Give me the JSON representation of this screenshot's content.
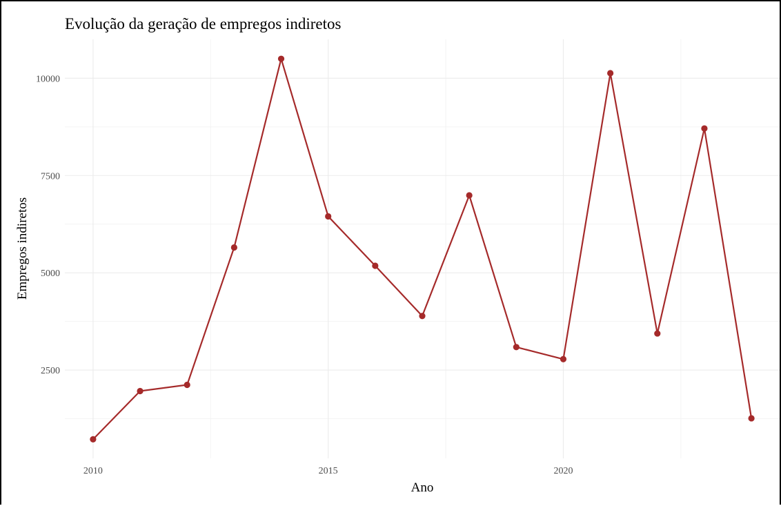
{
  "chart_data": {
    "type": "line",
    "title": "Evolução da geração de empregos indiretos",
    "xlabel": "Ano",
    "ylabel": "Empregos indiretos",
    "x": [
      2010,
      2011,
      2012,
      2013,
      2014,
      2015,
      2016,
      2017,
      2018,
      2019,
      2020,
      2021,
      2022,
      2023,
      2024
    ],
    "series": [
      {
        "values": [
          720,
          1960,
          2120,
          5650,
          10500,
          6450,
          5180,
          3890,
          6990,
          3090,
          2780,
          10130,
          3440,
          8710,
          1260
        ],
        "color": "#a52a2a"
      }
    ],
    "xlim": [
      2009.4,
      2024.6
    ],
    "ylim": [
      230,
      11000
    ],
    "x_ticks": [
      2010,
      2015,
      2020
    ],
    "y_ticks": [
      2500,
      5000,
      7500,
      10000
    ],
    "x_tick_labels": [
      "2010",
      "2015",
      "2020"
    ],
    "y_tick_labels": [
      "2500",
      "5000",
      "7500",
      "10000"
    ],
    "grid": true,
    "legend": "none"
  }
}
